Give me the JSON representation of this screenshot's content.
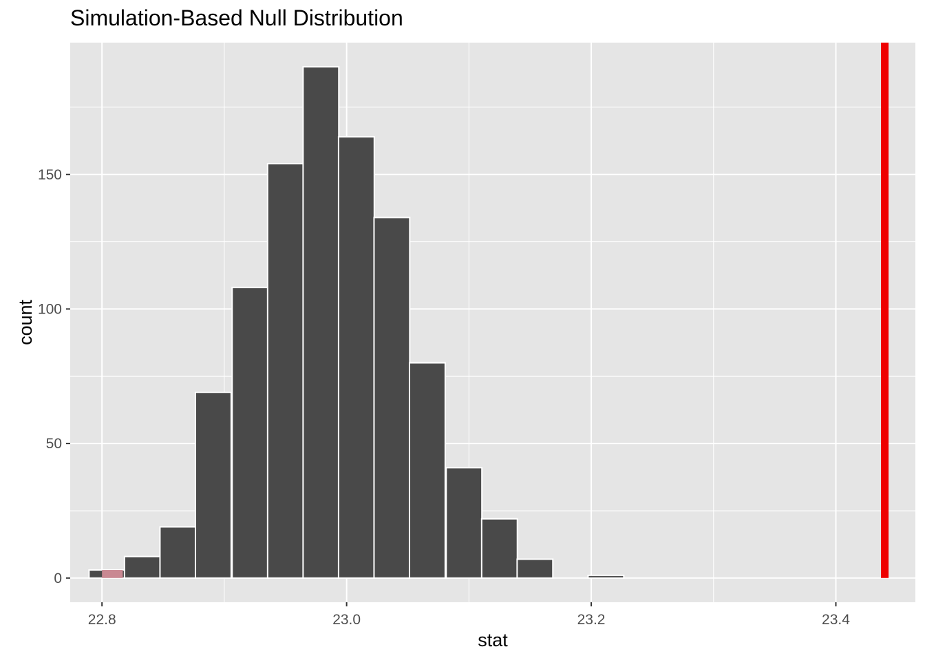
{
  "chart_data": {
    "type": "bar",
    "title": "Simulation-Based Null Distribution",
    "xlabel": "stat",
    "ylabel": "count",
    "xlim": [
      22.774,
      23.465
    ],
    "ylim": [
      -9,
      199
    ],
    "x_ticks": [
      22.8,
      23.0,
      23.2,
      23.4
    ],
    "x_tick_labels": [
      "22.8",
      "23.0",
      "23.2",
      "23.4"
    ],
    "y_ticks": [
      0,
      50,
      100,
      150
    ],
    "y_tick_labels": [
      "0",
      "50",
      "100",
      "150"
    ],
    "bin_width": 0.0292,
    "bins": [
      {
        "x": 22.804,
        "count": 3
      },
      {
        "x": 22.833,
        "count": 8
      },
      {
        "x": 22.862,
        "count": 19
      },
      {
        "x": 22.891,
        "count": 69
      },
      {
        "x": 22.921,
        "count": 108
      },
      {
        "x": 22.95,
        "count": 154
      },
      {
        "x": 22.979,
        "count": 190
      },
      {
        "x": 23.008,
        "count": 164
      },
      {
        "x": 23.037,
        "count": 134
      },
      {
        "x": 23.066,
        "count": 80
      },
      {
        "x": 23.096,
        "count": 41
      },
      {
        "x": 23.125,
        "count": 22
      },
      {
        "x": 23.154,
        "count": 7
      },
      {
        "x": 23.183,
        "count": 0
      },
      {
        "x": 23.212,
        "count": 1
      }
    ],
    "shaded_region": {
      "from": 22.8,
      "to": 22.817,
      "count": 3,
      "color": "#c98892"
    },
    "observed_stat": 23.44,
    "colors": {
      "panel": "#e5e5e5",
      "grid": "#ffffff",
      "bar_fill": "#494949",
      "bar_stroke": "#ffffff",
      "observed_line": "#ee0000",
      "text": "#4d4d4d"
    },
    "grid": true
  }
}
